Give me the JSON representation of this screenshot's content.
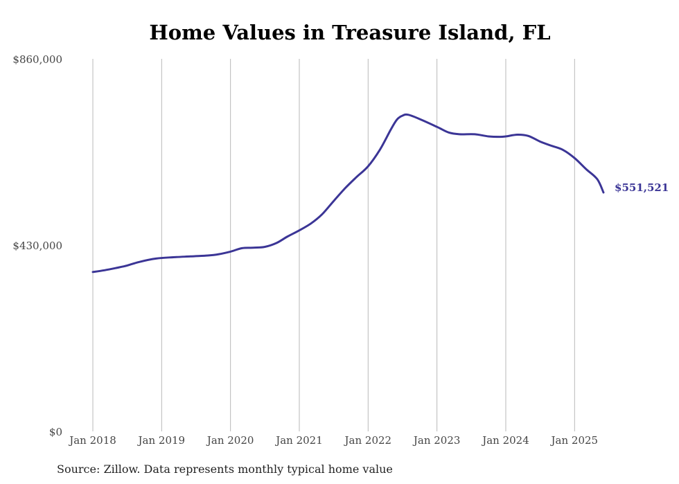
{
  "chart_data": {
    "type": "line",
    "title": "Home Values in Treasure Island, FL",
    "source": "Source: Zillow. Data represents monthly typical home value",
    "xlabel": "",
    "ylabel": "",
    "y_ticks": [
      "$0",
      "$430,000",
      "$860,000"
    ],
    "y_tick_values": [
      0,
      430000,
      860000
    ],
    "ylim": [
      0,
      860000
    ],
    "x_ticks": [
      "Jan 2018",
      "Jan 2019",
      "Jan 2020",
      "Jan 2021",
      "Jan 2022",
      "Jan 2023",
      "Jan 2024",
      "Jan 2025"
    ],
    "x_tick_values": [
      2018.0,
      2019.0,
      2020.0,
      2021.0,
      2022.0,
      2023.0,
      2024.0,
      2025.0
    ],
    "xlim": [
      2018.0,
      2025.45
    ],
    "grid": "vertical",
    "line_color": "#3b3596",
    "end_label": "$551,521",
    "series": [
      {
        "x": [
          2018.0,
          2018.17,
          2018.33,
          2018.5,
          2018.67,
          2018.92,
          2019.17,
          2019.42,
          2019.67,
          2019.83,
          2020.0,
          2020.17,
          2020.33,
          2020.5,
          2020.67,
          2020.83,
          2021.0,
          2021.17,
          2021.33,
          2021.5,
          2021.67,
          2021.83,
          2022.0,
          2022.17,
          2022.33,
          2022.42,
          2022.5,
          2022.58,
          2022.75,
          2023.0,
          2023.17,
          2023.33,
          2023.55,
          2023.75,
          2023.92,
          2024.0,
          2024.17,
          2024.33,
          2024.5,
          2024.67,
          2024.83,
          2025.0,
          2025.17,
          2025.33,
          2025.42
        ],
        "values": [
          368000,
          372000,
          377000,
          383000,
          391000,
          399000,
          402000,
          404000,
          406000,
          409000,
          415000,
          423000,
          424000,
          426000,
          435000,
          450000,
          464000,
          480000,
          501000,
          532000,
          562000,
          587000,
          612000,
          650000,
          697000,
          720000,
          729000,
          731000,
          721000,
          703000,
          690000,
          686000,
          686000,
          681000,
          680000,
          681000,
          685000,
          682000,
          669000,
          659000,
          650000,
          631000,
          605000,
          582000,
          551521
        ]
      }
    ]
  }
}
